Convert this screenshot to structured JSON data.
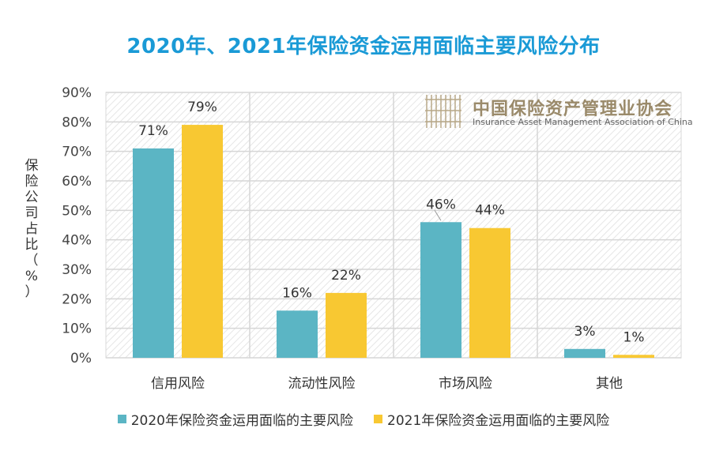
{
  "title": "2020年、2021年保险资金运用面临主要风险分布",
  "watermark": {
    "name_cn": "中国保险资产管理业协会",
    "name_en": "Insurance Asset Management Association of China"
  },
  "chart_data": {
    "type": "bar",
    "title": "2020年、2021年保险资金运用面临主要风险分布",
    "ylabel": "保险公司占比（%）",
    "ylim": [
      0,
      90
    ],
    "yticks": [
      "0%",
      "10%",
      "20%",
      "30%",
      "40%",
      "50%",
      "60%",
      "70%",
      "80%",
      "90%"
    ],
    "categories": [
      "信用风险",
      "流动性风险",
      "市场风险",
      "其他"
    ],
    "series": [
      {
        "name": "2020年保险资金运用面临的主要风险",
        "color": "#5bb5c4",
        "values": [
          71,
          16,
          46,
          3
        ],
        "labels": [
          "71%",
          "16%",
          "46%",
          "3%"
        ]
      },
      {
        "name": "2021年保险资金运用面临的主要风险",
        "color": "#f8c832",
        "values": [
          79,
          22,
          44,
          1
        ],
        "labels": [
          "79%",
          "22%",
          "44%",
          "1%"
        ]
      }
    ],
    "legend": "bottom",
    "grid": true
  }
}
